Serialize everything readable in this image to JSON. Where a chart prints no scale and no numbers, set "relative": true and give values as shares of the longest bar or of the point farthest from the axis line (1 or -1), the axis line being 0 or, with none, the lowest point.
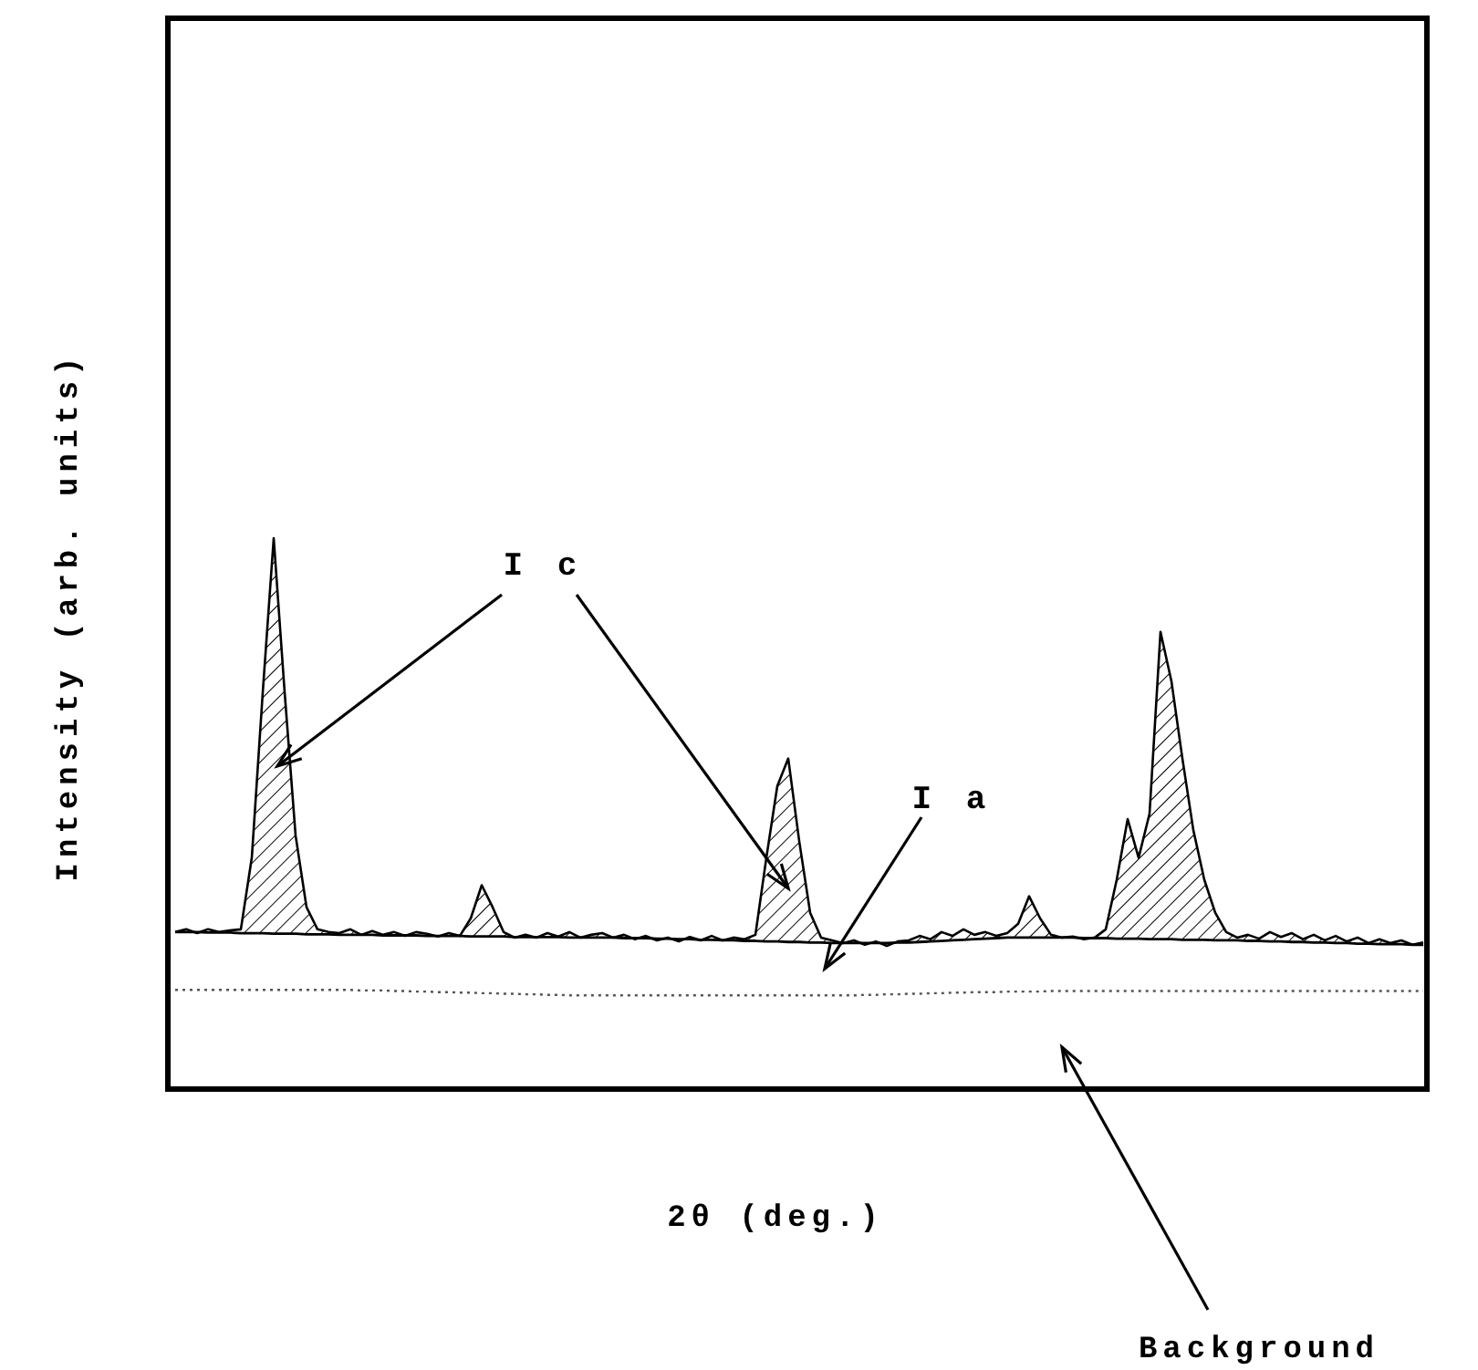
{
  "chart_data": {
    "type": "line",
    "relative": true,
    "xlabel": "2θ (deg.)",
    "ylabel": "Intensity (arb. units)",
    "categories": [
      null,
      null,
      null,
      null,
      null,
      null,
      null,
      null,
      null,
      null,
      null,
      null,
      null,
      null,
      null,
      null,
      null,
      null,
      null,
      null,
      null,
      null,
      null,
      null,
      null,
      null,
      null,
      null,
      null,
      null,
      null,
      null,
      null,
      null,
      null,
      null,
      null,
      null,
      null,
      null,
      null,
      null,
      null,
      null,
      null,
      null,
      null,
      null,
      null,
      null,
      null,
      null,
      null,
      null,
      null,
      null,
      null,
      null,
      null,
      null,
      null,
      null,
      null,
      null,
      null,
      null,
      null,
      null,
      null,
      null,
      null,
      null,
      null,
      null,
      null,
      null,
      null,
      null,
      null,
      null,
      null,
      null,
      null,
      null,
      null,
      null,
      null,
      null,
      null,
      null,
      null,
      null,
      null,
      null,
      null,
      null,
      null,
      null,
      null,
      null,
      null,
      null,
      null,
      null,
      null,
      null,
      null,
      null,
      null,
      null,
      null,
      null,
      null,
      null,
      null
    ],
    "series": [
      {
        "type": "area",
        "color": "#000000",
        "values": [
          0.285,
          0.29,
          0.283,
          0.29,
          0.285,
          0.288,
          0.29,
          0.42,
          0.72,
          1.0,
          0.72,
          0.46,
          0.33,
          0.29,
          0.285,
          0.283,
          0.29,
          0.28,
          0.287,
          0.28,
          0.285,
          0.278,
          0.285,
          0.282,
          0.277,
          0.283,
          0.278,
          0.31,
          0.37,
          0.33,
          0.285,
          0.275,
          0.28,
          0.275,
          0.283,
          0.277,
          0.285,
          0.275,
          0.28,
          0.283,
          0.275,
          0.28,
          0.272,
          0.278,
          0.27,
          0.275,
          0.268,
          0.276,
          0.27,
          0.278,
          0.27,
          0.275,
          0.272,
          0.28,
          0.42,
          0.55,
          0.6,
          0.45,
          0.32,
          0.275,
          0.27,
          0.265,
          0.27,
          0.262,
          0.268,
          0.26,
          0.268,
          0.27,
          0.278,
          0.272,
          0.285,
          0.278,
          0.29,
          0.28,
          0.285,
          0.278,
          0.283,
          0.3,
          0.35,
          0.31,
          0.28,
          0.275,
          0.277,
          0.272,
          0.275,
          0.29,
          0.38,
          0.49,
          0.42,
          0.5,
          0.83,
          0.74,
          0.6,
          0.47,
          0.38,
          0.32,
          0.285,
          0.275,
          0.28,
          0.273,
          0.285,
          0.276,
          0.283,
          0.272,
          0.28,
          0.27,
          0.278,
          0.268,
          0.275,
          0.265,
          0.272,
          0.265,
          0.27,
          0.262,
          0.266
        ]
      },
      {
        "color": "#000000",
        "values": [
          0.285,
          0.285,
          0.285,
          0.284,
          0.284,
          0.284,
          0.283,
          0.283,
          0.283,
          0.282,
          0.282,
          0.282,
          0.281,
          0.281,
          0.281,
          0.28,
          0.28,
          0.28,
          0.28,
          0.279,
          0.279,
          0.279,
          0.279,
          0.278,
          0.278,
          0.278,
          0.278,
          0.277,
          0.277,
          0.277,
          0.277,
          0.276,
          0.276,
          0.276,
          0.276,
          0.276,
          0.275,
          0.275,
          0.275,
          0.275,
          0.275,
          0.274,
          0.274,
          0.274,
          0.273,
          0.273,
          0.272,
          0.272,
          0.271,
          0.271,
          0.27,
          0.27,
          0.269,
          0.269,
          0.268,
          0.268,
          0.267,
          0.267,
          0.266,
          0.266,
          0.265,
          0.265,
          0.265,
          0.265,
          0.265,
          0.265,
          0.266,
          0.266,
          0.267,
          0.268,
          0.269,
          0.27,
          0.271,
          0.272,
          0.273,
          0.274,
          0.275,
          0.275,
          0.275,
          0.275,
          0.275,
          0.275,
          0.275,
          0.274,
          0.274,
          0.274,
          0.273,
          0.273,
          0.273,
          0.272,
          0.272,
          0.272,
          0.271,
          0.271,
          0.271,
          0.27,
          0.27,
          0.27,
          0.269,
          0.269,
          0.268,
          0.268,
          0.267,
          0.267,
          0.266,
          0.266,
          0.265,
          0.265,
          0.264,
          0.264,
          0.263,
          0.263,
          0.263,
          0.262,
          0.262
        ]
      },
      {
        "color": "#555555",
        "line_style": "dotted",
        "values": [
          0.18,
          0.18,
          0.18,
          0.18,
          0.18,
          0.18,
          0.18,
          0.18,
          0.18,
          0.18,
          0.18,
          0.18,
          0.18,
          0.18,
          0.18,
          0.18,
          0.18,
          0.179,
          0.179,
          0.179,
          0.178,
          0.178,
          0.177,
          0.177,
          0.176,
          0.176,
          0.175,
          0.175,
          0.174,
          0.174,
          0.173,
          0.173,
          0.172,
          0.172,
          0.171,
          0.171,
          0.17,
          0.17,
          0.17,
          0.17,
          0.17,
          0.17,
          0.17,
          0.17,
          0.17,
          0.17,
          0.17,
          0.17,
          0.17,
          0.17,
          0.17,
          0.17,
          0.17,
          0.17,
          0.17,
          0.17,
          0.17,
          0.17,
          0.17,
          0.17,
          0.17,
          0.17,
          0.17,
          0.171,
          0.171,
          0.172,
          0.172,
          0.173,
          0.173,
          0.174,
          0.174,
          0.175,
          0.175,
          0.176,
          0.176,
          0.176,
          0.177,
          0.177,
          0.177,
          0.177,
          0.178,
          0.178,
          0.178,
          0.178,
          0.178,
          0.178,
          0.178,
          0.178,
          0.178,
          0.178,
          0.178,
          0.178,
          0.178,
          0.178,
          0.178,
          0.178,
          0.178,
          0.178,
          0.178,
          0.178,
          0.178,
          0.178,
          0.178,
          0.178,
          0.178,
          0.178,
          0.178,
          0.178,
          0.178,
          0.178,
          0.178,
          0.178,
          0.178,
          0.178,
          0.178
        ]
      }
    ],
    "annotations": [
      "I c",
      "I a",
      "Background"
    ]
  }
}
